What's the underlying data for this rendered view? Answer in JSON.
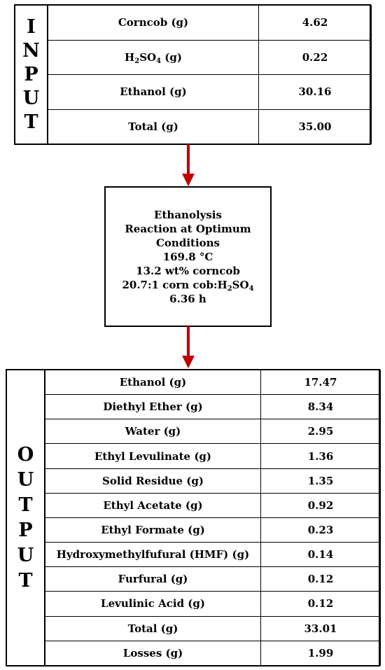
{
  "input": {
    "label_letters": [
      "I",
      "N",
      "P",
      "U",
      "T"
    ],
    "rows": [
      {
        "name": "Corncob (g)",
        "value": "4.62"
      },
      {
        "name": "H2SO4 (g)",
        "value": "0.22"
      },
      {
        "name": "Ethanol (g)",
        "value": "30.16"
      },
      {
        "name": "Total (g)",
        "value": "35.00"
      }
    ]
  },
  "process": {
    "line1": "Ethanolysis",
    "line2": "Reaction at Optimum",
    "line3": "Conditions",
    "line4": "169.8 °C",
    "line5": "13.2 wt% corncob",
    "line6": "20.7:1 corn cob:H2SO4",
    "line7": "6.36 h"
  },
  "output": {
    "label_letters": [
      "O",
      "U",
      "T",
      "P",
      "U",
      "T"
    ],
    "rows": [
      {
        "name": "Ethanol (g)",
        "value": "17.47"
      },
      {
        "name": "Diethyl Ether (g)",
        "value": "8.34"
      },
      {
        "name": "Water (g)",
        "value": "2.95"
      },
      {
        "name": "Ethyl Levulinate (g)",
        "value": "1.36"
      },
      {
        "name": "Solid Residue (g)",
        "value": "1.35"
      },
      {
        "name": "Ethyl Acetate (g)",
        "value": "0.92"
      },
      {
        "name": "Ethyl Formate (g)",
        "value": "0.23"
      },
      {
        "name": "Hydroxymethylfufural (HMF) (g)",
        "value": "0.14"
      },
      {
        "name": "Furfural (g)",
        "value": "0.12"
      },
      {
        "name": "Levulinic Acid (g)",
        "value": "0.12"
      },
      {
        "name": "Total (g)",
        "value": "33.01"
      },
      {
        "name": "Losses (g)",
        "value": "1.99"
      }
    ]
  },
  "colors": {
    "arrow": "#c00000",
    "border": "#000000"
  }
}
